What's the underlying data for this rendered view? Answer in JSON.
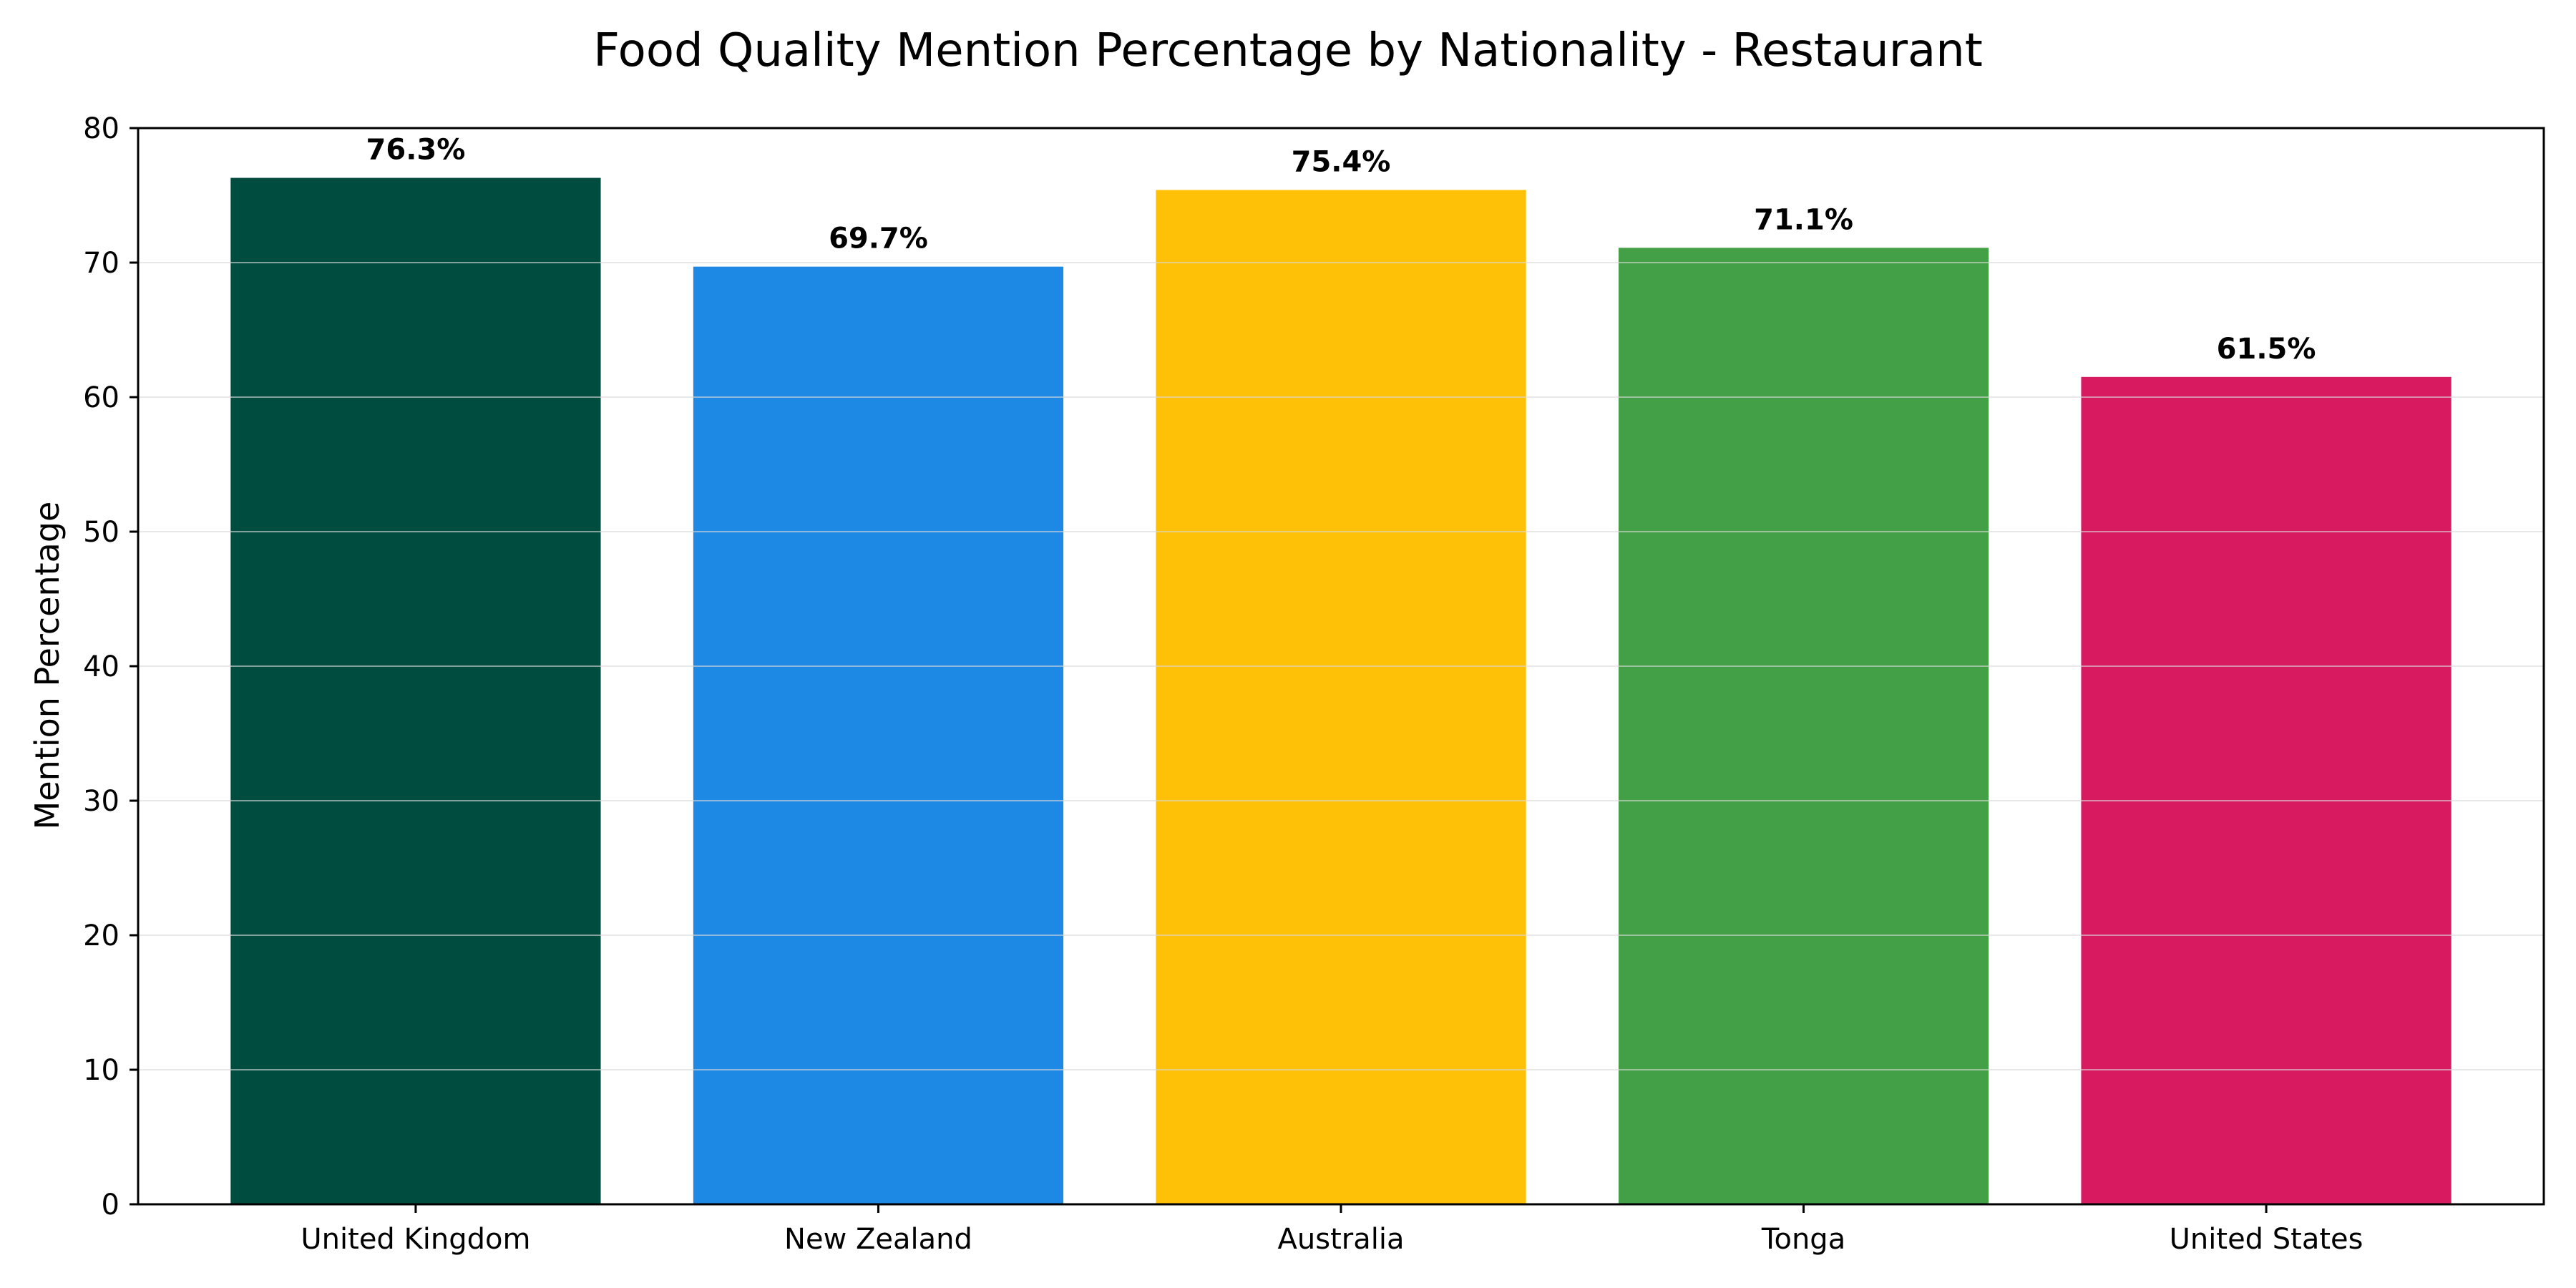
{
  "chart_data": {
    "type": "bar",
    "title": "Food Quality Mention Percentage by Nationality - Restaurant",
    "xlabel": "",
    "ylabel": "Mention Percentage",
    "categories": [
      "United Kingdom",
      "New Zealand",
      "Australia",
      "Tonga",
      "United States"
    ],
    "values": [
      76.3,
      69.7,
      75.4,
      71.1,
      61.5
    ],
    "data_labels": [
      "76.3%",
      "69.7%",
      "75.4%",
      "71.1%",
      "61.5%"
    ],
    "colors": [
      "#004d40",
      "#1e88e5",
      "#ffc107",
      "#43a047",
      "#d81b60"
    ],
    "ylim": [
      0,
      80
    ],
    "yticks": [
      0,
      10,
      20,
      30,
      40,
      50,
      60,
      70,
      80
    ],
    "grid": "horizontal",
    "legend": "none"
  }
}
